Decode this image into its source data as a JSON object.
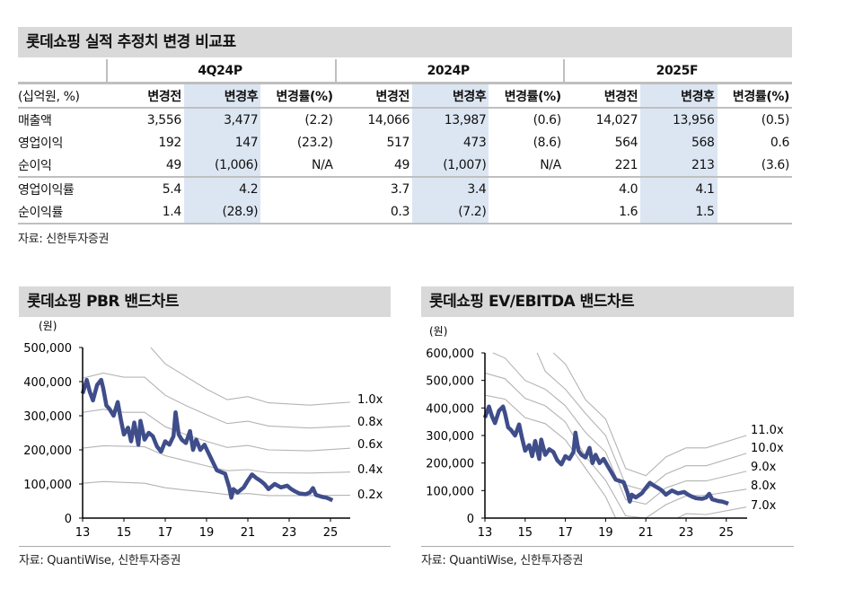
{
  "table": {
    "title": "롯데쇼핑 실적 추정치 변경 비교표",
    "unit_label": "(십억원, %)",
    "periods": [
      "4Q24P",
      "2024P",
      "2025F"
    ],
    "sub_headers": [
      "변경전",
      "변경후",
      "변경률(%)"
    ],
    "rows": [
      {
        "label": "매출액",
        "values": [
          "3,556",
          "3,477",
          "(2.2)",
          "14,066",
          "13,987",
          "(0.6)",
          "14,027",
          "13,956",
          "(0.5)"
        ]
      },
      {
        "label": "영업이익",
        "values": [
          "192",
          "147",
          "(23.2)",
          "517",
          "473",
          "(8.6)",
          "564",
          "568",
          "0.6"
        ]
      },
      {
        "label": "순이익",
        "values": [
          "49",
          "(1,006)",
          "N/A",
          "49",
          "(1,007)",
          "N/A",
          "221",
          "213",
          "(3.6)"
        ]
      },
      {
        "label": "영업이익률",
        "values": [
          "5.4",
          "4.2",
          "",
          "3.7",
          "3.4",
          "",
          "4.0",
          "4.1",
          ""
        ]
      },
      {
        "label": "순이익률",
        "values": [
          "1.4",
          "(28.9)",
          "",
          "0.3",
          "(7.2)",
          "",
          "1.6",
          "1.5",
          ""
        ]
      }
    ],
    "source": "자료: 신한투자증권"
  },
  "colors": {
    "price": "#3f4d8a",
    "band": "#b4b4b4",
    "shade": "#dce6f2",
    "titlebar": "#d9d9d9"
  },
  "chart_data": [
    {
      "type": "line",
      "title": "롯데쇼핑 PBR 밴드차트",
      "ylabel": "(원)",
      "ylim": [
        0,
        500000
      ],
      "xlim": [
        2013,
        2026
      ],
      "yticks": [
        0,
        100000,
        200000,
        300000,
        400000,
        500000
      ],
      "ytick_labels": [
        "0",
        "100,000",
        "200,000",
        "300,000",
        "400,000",
        "500,000"
      ],
      "xticks": [
        2013,
        2015,
        2017,
        2019,
        2021,
        2023,
        2025
      ],
      "xtick_labels": [
        "13",
        "15",
        "17",
        "19",
        "21",
        "23",
        "25"
      ],
      "source": "자료: QuantiWise, 신한투자증권",
      "price": {
        "x": [
          2013.0,
          2013.2,
          2013.35,
          2013.5,
          2013.7,
          2013.9,
          2014.0,
          2014.15,
          2014.3,
          2014.5,
          2014.7,
          2014.85,
          2015.0,
          2015.2,
          2015.35,
          2015.5,
          2015.7,
          2015.8,
          2016.0,
          2016.2,
          2016.4,
          2016.6,
          2016.8,
          2017.0,
          2017.2,
          2017.4,
          2017.5,
          2017.65,
          2017.8,
          2018.0,
          2018.2,
          2018.35,
          2018.5,
          2018.7,
          2018.9,
          2019.1,
          2019.3,
          2019.5,
          2019.7,
          2019.9,
          2020.1,
          2020.2,
          2020.3,
          2020.5,
          2020.8,
          2021.0,
          2021.2,
          2021.4,
          2021.6,
          2021.8,
          2022.0,
          2022.3,
          2022.6,
          2022.9,
          2023.1,
          2023.3,
          2023.5,
          2023.8,
          2024.0,
          2024.15,
          2024.3,
          2024.6,
          2024.8,
          2025.0,
          2025.1
        ],
        "y": [
          365000,
          405000,
          370000,
          345000,
          390000,
          405000,
          380000,
          330000,
          320000,
          300000,
          340000,
          290000,
          245000,
          265000,
          225000,
          280000,
          215000,
          285000,
          230000,
          250000,
          240000,
          210000,
          195000,
          225000,
          215000,
          240000,
          310000,
          245000,
          230000,
          220000,
          255000,
          200000,
          230000,
          200000,
          215000,
          190000,
          165000,
          140000,
          135000,
          130000,
          90000,
          60000,
          85000,
          75000,
          90000,
          110000,
          128000,
          118000,
          110000,
          100000,
          85000,
          100000,
          90000,
          95000,
          85000,
          78000,
          72000,
          70000,
          75000,
          88000,
          68000,
          62000,
          60000,
          55000,
          52000
        ]
      },
      "bands": [
        {
          "name": "1.0x",
          "x": [
            2016.3,
            2017,
            2018,
            2019,
            2020,
            2021,
            2022,
            2024,
            2026
          ],
          "y": [
            500000,
            452000,
            415000,
            378000,
            347000,
            356000,
            338000,
            331000,
            340000
          ]
        },
        {
          "name": "0.8x",
          "x": [
            2013,
            2014,
            2015,
            2016,
            2017,
            2018,
            2019,
            2020,
            2021,
            2022,
            2024,
            2026
          ],
          "y": [
            410000,
            425000,
            413000,
            413000,
            360000,
            330000,
            303000,
            277000,
            284000,
            270000,
            264000,
            270000
          ]
        },
        {
          "name": "0.6x",
          "x": [
            2013,
            2014,
            2015,
            2016,
            2017,
            2018,
            2019,
            2020,
            2021,
            2022,
            2024,
            2026
          ],
          "y": [
            310000,
            319000,
            310000,
            310000,
            268000,
            245000,
            225000,
            207000,
            213000,
            200000,
            197000,
            205000
          ]
        },
        {
          "name": "0.4x",
          "x": [
            2013,
            2014,
            2016,
            2017,
            2018,
            2019,
            2020,
            2021,
            2022,
            2024,
            2026
          ],
          "y": [
            205000,
            212000,
            209000,
            183000,
            168000,
            153000,
            139000,
            142000,
            133000,
            132000,
            135000
          ]
        },
        {
          "name": "0.2x",
          "x": [
            2013,
            2014,
            2016,
            2017,
            2018,
            2019,
            2020,
            2021,
            2022,
            2024,
            2026
          ],
          "y": [
            102000,
            107000,
            102000,
            89000,
            82000,
            76000,
            69000,
            72000,
            66000,
            66000,
            67000
          ]
        }
      ]
    },
    {
      "type": "line",
      "title": "롯데쇼핑 EV/EBITDA 밴드차트",
      "ylabel": "(원)",
      "ylim": [
        0,
        600000
      ],
      "xlim": [
        2013,
        2026
      ],
      "yticks": [
        0,
        100000,
        200000,
        300000,
        400000,
        500000,
        600000
      ],
      "ytick_labels": [
        "0",
        "100,000",
        "200,000",
        "300,000",
        "400,000",
        "500,000",
        "600,000"
      ],
      "xticks": [
        2013,
        2015,
        2017,
        2019,
        2021,
        2023,
        2025
      ],
      "xtick_labels": [
        "13",
        "15",
        "17",
        "19",
        "21",
        "23",
        "25"
      ],
      "source": "자료: QuantiWise, 신한투자증권",
      "price": {
        "x": [
          2013.0,
          2013.2,
          2013.35,
          2013.5,
          2013.7,
          2013.9,
          2014.0,
          2014.15,
          2014.3,
          2014.5,
          2014.7,
          2014.85,
          2015.0,
          2015.2,
          2015.35,
          2015.5,
          2015.7,
          2015.8,
          2016.0,
          2016.2,
          2016.4,
          2016.6,
          2016.8,
          2017.0,
          2017.2,
          2017.4,
          2017.5,
          2017.65,
          2017.8,
          2018.0,
          2018.2,
          2018.35,
          2018.5,
          2018.7,
          2018.9,
          2019.1,
          2019.3,
          2019.5,
          2019.7,
          2019.9,
          2020.1,
          2020.2,
          2020.3,
          2020.5,
          2020.8,
          2021.0,
          2021.2,
          2021.4,
          2021.6,
          2021.8,
          2022.0,
          2022.3,
          2022.6,
          2022.9,
          2023.1,
          2023.3,
          2023.5,
          2023.8,
          2024.0,
          2024.15,
          2024.3,
          2024.6,
          2024.8,
          2025.0,
          2025.1
        ],
        "y": [
          365000,
          405000,
          370000,
          345000,
          390000,
          405000,
          380000,
          330000,
          320000,
          300000,
          340000,
          290000,
          245000,
          265000,
          225000,
          280000,
          215000,
          285000,
          230000,
          250000,
          240000,
          210000,
          195000,
          225000,
          215000,
          240000,
          310000,
          245000,
          230000,
          220000,
          255000,
          200000,
          230000,
          200000,
          215000,
          190000,
          165000,
          140000,
          135000,
          130000,
          90000,
          60000,
          85000,
          75000,
          90000,
          110000,
          128000,
          118000,
          110000,
          100000,
          85000,
          100000,
          90000,
          95000,
          85000,
          78000,
          72000,
          70000,
          75000,
          88000,
          68000,
          62000,
          60000,
          55000,
          52000
        ]
      },
      "bands": [
        {
          "name": "11.0x",
          "x": [
            2016.4,
            2017,
            2018,
            2019,
            2020,
            2021,
            2022,
            2023,
            2024,
            2026
          ],
          "y": [
            600000,
            560000,
            430000,
            360000,
            180000,
            154000,
            222000,
            255000,
            255000,
            300000
          ]
        },
        {
          "name": "10.0x",
          "x": [
            2015.6,
            2016,
            2017,
            2018,
            2019,
            2020,
            2021,
            2022,
            2023,
            2024,
            2026
          ],
          "y": [
            600000,
            533000,
            468000,
            380000,
            300000,
            120000,
            100000,
            160000,
            190000,
            190000,
            235000
          ]
        },
        {
          "name": "9.0x",
          "x": [
            2013.4,
            2014,
            2015,
            2016,
            2017,
            2018,
            2019,
            2020,
            2021,
            2022,
            2023,
            2024,
            2026
          ],
          "y": [
            600000,
            581000,
            500000,
            468000,
            408000,
            311000,
            240000,
            67000,
            51000,
            110000,
            135000,
            135000,
            170000
          ]
        },
        {
          "name": "8.0x",
          "x": [
            2013,
            2014,
            2015,
            2016,
            2017,
            2018,
            2019,
            2020,
            2021,
            2022,
            2023,
            2024,
            2026
          ],
          "y": [
            527000,
            506000,
            435000,
            408000,
            349000,
            224000,
            137000,
            8000,
            0,
            49000,
            81000,
            83000,
            105000
          ]
        },
        {
          "name": "7.0x",
          "x": [
            2013,
            2014,
            2015,
            2016,
            2017,
            2018,
            2019,
            2019.5,
            2020,
            2021,
            2022,
            2023,
            2024,
            2026
          ],
          "y": [
            446000,
            432000,
            365000,
            343000,
            284000,
            181000,
            78000,
            0,
            -60000,
            -60000,
            -20000,
            16000,
            13000,
            40000
          ]
        }
      ]
    }
  ]
}
